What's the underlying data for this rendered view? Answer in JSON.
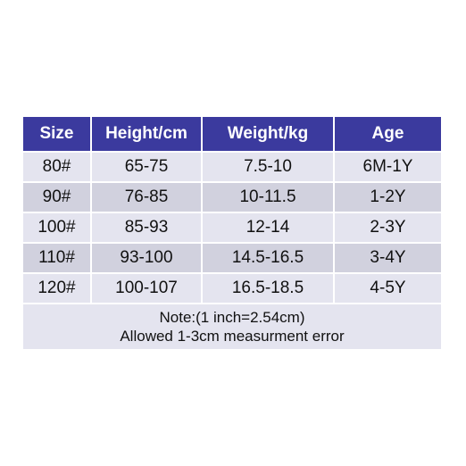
{
  "table": {
    "headers": [
      "Size",
      "Height/cm",
      "Weight/kg",
      "Age"
    ],
    "rows": [
      [
        "80#",
        "65-75",
        "7.5-10",
        "6M-1Y"
      ],
      [
        "90#",
        "76-85",
        "10-11.5",
        "1-2Y"
      ],
      [
        "100#",
        "85-93",
        "12-14",
        "2-3Y"
      ],
      [
        "110#",
        "93-100",
        "14.5-16.5",
        "3-4Y"
      ],
      [
        "120#",
        "100-107",
        "16.5-18.5",
        "4-5Y"
      ]
    ],
    "note_line1": "Note:(1 inch=2.54cm)",
    "note_line2": "Allowed 1-3cm measurment error"
  },
  "colors": {
    "header_bg": "#3b3a9e",
    "header_text": "#ffffff",
    "row_light": "#e4e4ef",
    "row_dark": "#d1d1de"
  }
}
